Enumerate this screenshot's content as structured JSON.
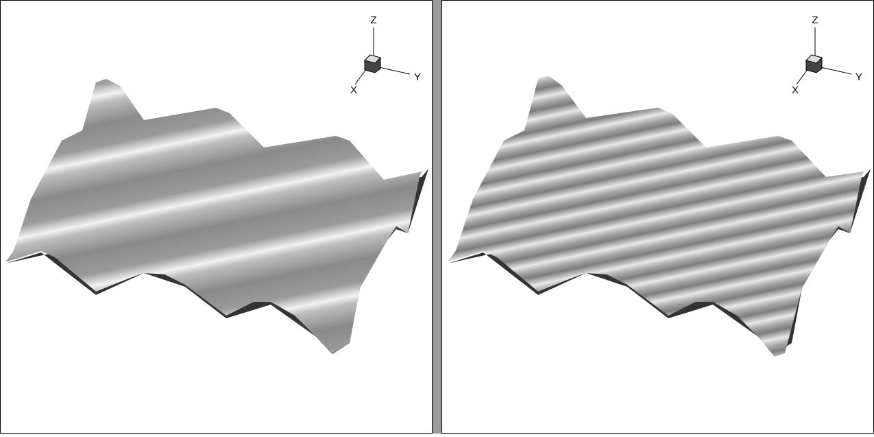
{
  "panels": [
    {
      "axis_labels": {
        "z": "Z",
        "y": "Y",
        "x": "X"
      }
    },
    {
      "axis_labels": {
        "z": "Z",
        "y": "Y",
        "x": "X"
      }
    }
  ]
}
